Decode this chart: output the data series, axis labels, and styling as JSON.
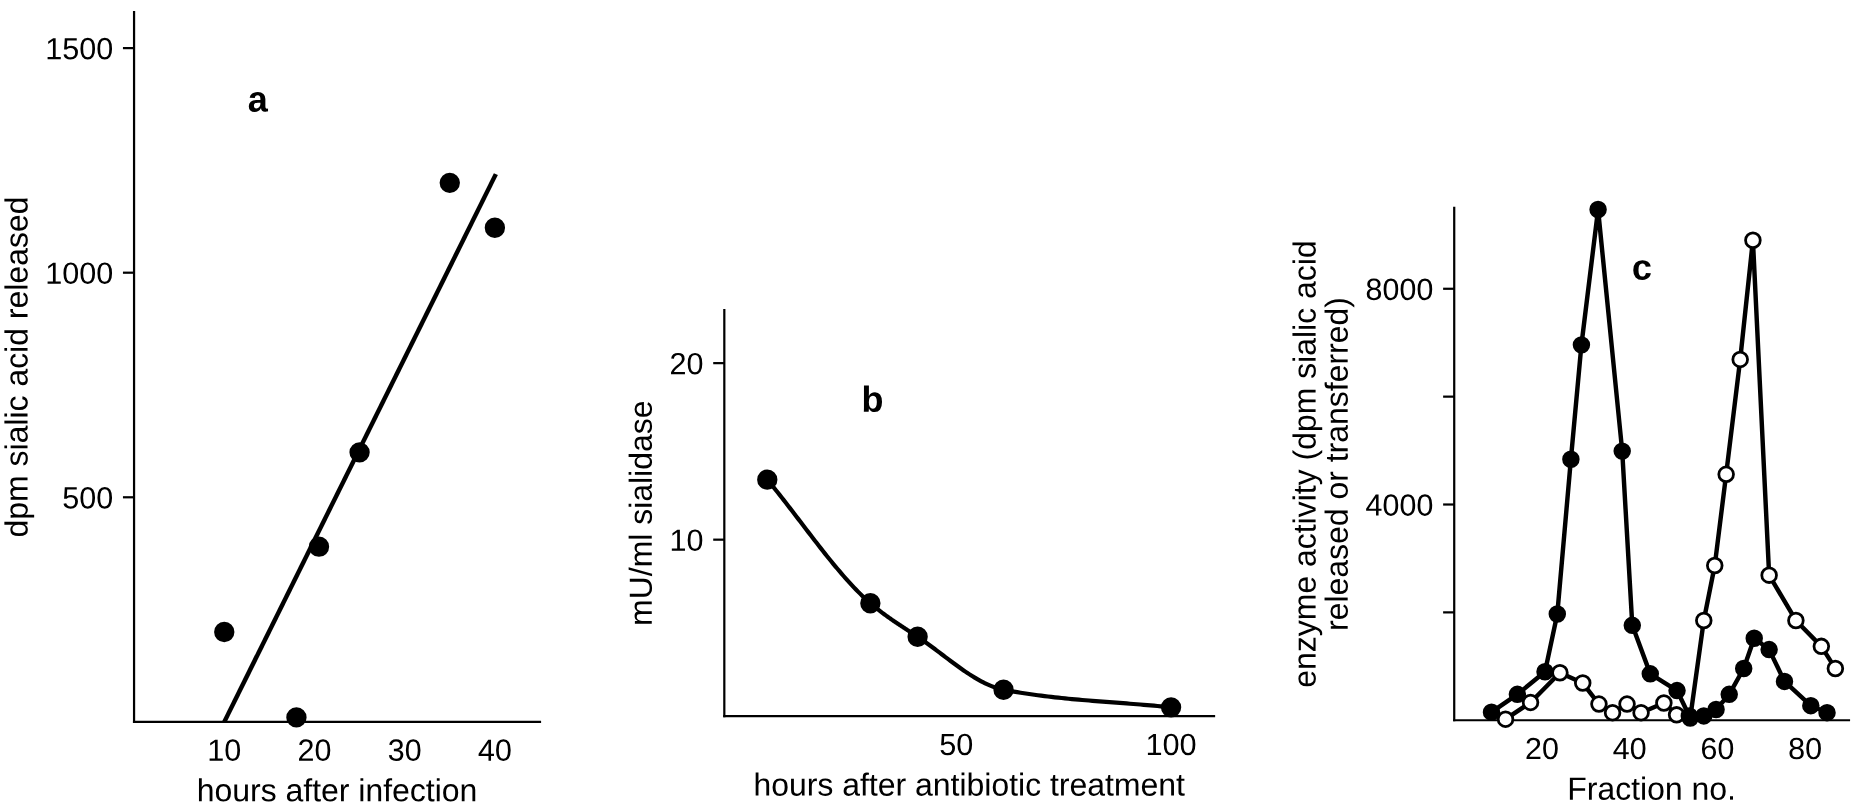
{
  "chart_data": [
    {
      "type": "scatter",
      "ylabel": "dpm sialic acid released",
      "xlabel": "hours after infection",
      "annotations": [
        "a"
      ],
      "xlim": [
        0,
        45
      ],
      "xticks": [
        10,
        20,
        30,
        40
      ],
      "ylim": [
        0,
        1580
      ],
      "yticks": [
        500,
        1000,
        1500
      ],
      "marker": "circle",
      "grid": false,
      "legend": false,
      "series": [
        {
          "type": "scatter",
          "color": "#000000",
          "x": [
            10,
            18,
            20.5,
            25,
            35,
            40
          ],
          "values": [
            200,
            10,
            390,
            600,
            1200,
            1100
          ]
        },
        {
          "type": "line",
          "color": "#000000",
          "marker": "none",
          "x": [
            10,
            40
          ],
          "values": [
            0,
            1215
          ]
        }
      ]
    },
    {
      "type": "line",
      "ylabel": "mU/ml sialidase",
      "xlabel": "hours after antibiotic treatment",
      "annotations": [
        "b"
      ],
      "xlim": [
        -4,
        110
      ],
      "xticks": [
        50,
        100
      ],
      "ylim": [
        0,
        23
      ],
      "yticks": [
        10,
        20
      ],
      "marker": "circle",
      "line_style": "solid",
      "grid": false,
      "legend": false,
      "series": [
        {
          "color": "#000000",
          "x": [
            6,
            30,
            41,
            61,
            100
          ],
          "values": [
            13.4,
            6.4,
            4.5,
            1.5,
            0.5
          ]
        }
      ]
    },
    {
      "type": "line",
      "ylabel": "enzyme activity (dpm sialic acid\nreleased or transferred)",
      "xlabel": "Fraction no.",
      "annotations": [
        "c"
      ],
      "xlim": [
        0,
        90
      ],
      "xticks": [
        20,
        40,
        60,
        80
      ],
      "ylim": [
        0,
        9500
      ],
      "yticks": [
        {
          "value": 2000,
          "label": null
        },
        4000,
        {
          "value": 6000,
          "label": null
        },
        8000
      ],
      "marker": "circle",
      "line_style": "solid",
      "grid": false,
      "legend": false,
      "series": [
        {
          "color": "#000000",
          "colors": [
            "#000000",
            "#000000",
            "#000000",
            "#000000",
            "#000000",
            "#000000",
            "#000000",
            "#000000",
            "#000000",
            "#000000",
            "#000000",
            "#000000",
            "#000000",
            "#000000",
            "#000000",
            "#000000",
            "#000000",
            "#000000",
            "#000000",
            "#000000",
            "#000000"
          ],
          "x": [
            8.5,
            14.4,
            20.7,
            23.5,
            26.6,
            29.0,
            32.8,
            38.3,
            40.6,
            44.7,
            50.8,
            53.6,
            56.9,
            59.7,
            62.7,
            66.0,
            68.4,
            71.8,
            75.3,
            81.3,
            85.0
          ],
          "values": [
            150,
            480,
            900,
            1970,
            4840,
            6960,
            9470,
            4990,
            1760,
            860,
            550,
            80,
            80,
            200,
            480,
            960,
            1520,
            1310,
            720,
            270,
            140
          ]
        },
        {
          "color": "#000000",
          "colors": [
            "#ffffff",
            "#ffffff",
            "#ffffff",
            "#ffffff",
            "#ffffff",
            "#ffffff",
            "#ffffff",
            "#ffffff",
            "#ffffff",
            "#ffffff",
            "#ffffff",
            "#ffffff",
            "#ffffff",
            "#ffffff",
            "#ffffff",
            "#ffffff",
            "#ffffff",
            "#ffffff",
            "#ffffff",
            "#ffffff"
          ],
          "x": [
            11.7,
            17.4,
            24.1,
            29.3,
            33.0,
            36.1,
            39.4,
            42.6,
            47.8,
            50.7,
            53.8,
            56.9,
            59.4,
            62.0,
            65.2,
            68.1,
            71.8,
            77.9,
            83.7,
            86.9
          ],
          "values": [
            20,
            330,
            880,
            690,
            300,
            140,
            300,
            140,
            320,
            100,
            40,
            1850,
            2870,
            4560,
            6690,
            8900,
            2690,
            1850,
            1370,
            960
          ]
        }
      ]
    }
  ]
}
